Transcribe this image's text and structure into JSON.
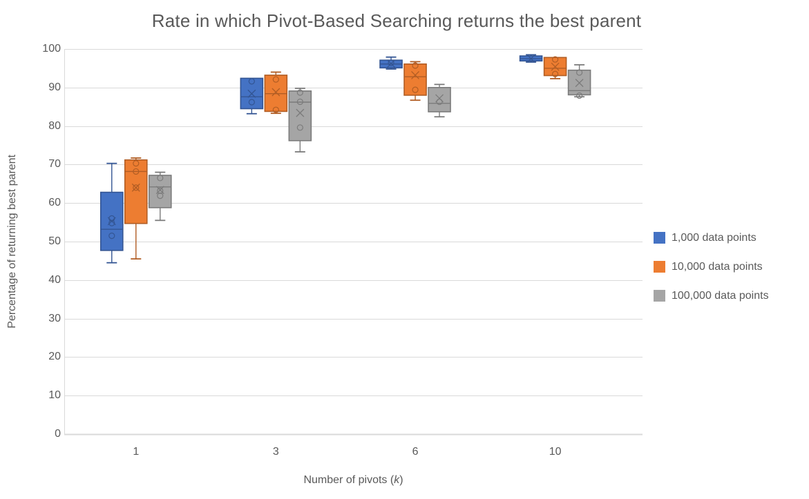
{
  "chart_data": {
    "type": "boxplot",
    "title": "Rate in which Pivot-Based Searching returns the best parent",
    "xlabel": "Number of pivots (k)",
    "xlabel_parts": {
      "prefix": "Number of pivots (",
      "italic": "k",
      "suffix": ")"
    },
    "ylabel": "Percentage of returning best parent",
    "ylim": [
      0,
      100
    ],
    "ytick_step": 10,
    "yticks": [
      0,
      10,
      20,
      30,
      40,
      50,
      60,
      70,
      80,
      90,
      100
    ],
    "grid": true,
    "legend_position": "right",
    "categories": [
      "1",
      "3",
      "6",
      "10"
    ],
    "colors": {
      "grid": "#D9D9D9",
      "axis": "#D9D9D9",
      "text": "#595959"
    },
    "series": [
      {
        "name": "1,000 data points",
        "fill": "#4472C4",
        "stroke": "#335593",
        "boxes": [
          {
            "low": 44.5,
            "q1": 47.7,
            "median": 53.2,
            "q3": 62.8,
            "high": 70.3,
            "mean": 55.3,
            "points": [
              56.0,
              54.8,
              51.5
            ]
          },
          {
            "low": 83.2,
            "q1": 84.5,
            "median": 87.6,
            "q3": 92.4,
            "high": 92.4,
            "mean": 88.4,
            "points": [
              91.6,
              86.2
            ]
          },
          {
            "low": 94.8,
            "q1": 95.1,
            "median": 96.1,
            "q3": 97.1,
            "high": 97.9,
            "mean": 96.2,
            "points": [
              96.4
            ]
          },
          {
            "low": 96.6,
            "q1": 96.9,
            "median": 97.5,
            "q3": 98.2,
            "high": 98.5,
            "mean": 97.5,
            "points": []
          }
        ]
      },
      {
        "name": "10,000 data points",
        "fill": "#ED7D31",
        "stroke": "#B15D24",
        "boxes": [
          {
            "low": 45.5,
            "q1": 54.7,
            "median": 68.2,
            "q3": 71.2,
            "high": 71.7,
            "mean": 64.0,
            "points": [
              70.3,
              68.2,
              64.0
            ]
          },
          {
            "low": 83.3,
            "q1": 83.8,
            "median": 88.4,
            "q3": 93.2,
            "high": 94.0,
            "mean": 88.8,
            "points": [
              92.1,
              84.2
            ]
          },
          {
            "low": 86.7,
            "q1": 88.0,
            "median": 92.8,
            "q3": 96.1,
            "high": 96.7,
            "mean": 93.2,
            "points": [
              95.7,
              89.4
            ]
          },
          {
            "low": 92.3,
            "q1": 93.1,
            "median": 95.0,
            "q3": 97.8,
            "high": 97.8,
            "mean": 95.4,
            "points": [
              97.3,
              93.5
            ]
          }
        ]
      },
      {
        "name": "100,000 data points",
        "fill": "#A5A5A5",
        "stroke": "#7B7B7B",
        "boxes": [
          {
            "low": 55.5,
            "q1": 58.8,
            "median": 64.2,
            "q3": 67.2,
            "high": 68.0,
            "mean": 63.4,
            "points": [
              66.5,
              63.2,
              61.9
            ]
          },
          {
            "low": 73.3,
            "q1": 76.2,
            "median": 86.2,
            "q3": 89.1,
            "high": 89.8,
            "mean": 83.4,
            "points": [
              88.7,
              86.3,
              79.6
            ]
          },
          {
            "low": 82.4,
            "q1": 83.7,
            "median": 85.9,
            "q3": 90.0,
            "high": 90.8,
            "mean": 87.2,
            "points": [
              86.3
            ]
          },
          {
            "low": 87.6,
            "q1": 88.1,
            "median": 89.2,
            "q3": 94.5,
            "high": 95.9,
            "mean": 91.2,
            "points": [
              93.9,
              87.9
            ]
          }
        ]
      }
    ]
  }
}
